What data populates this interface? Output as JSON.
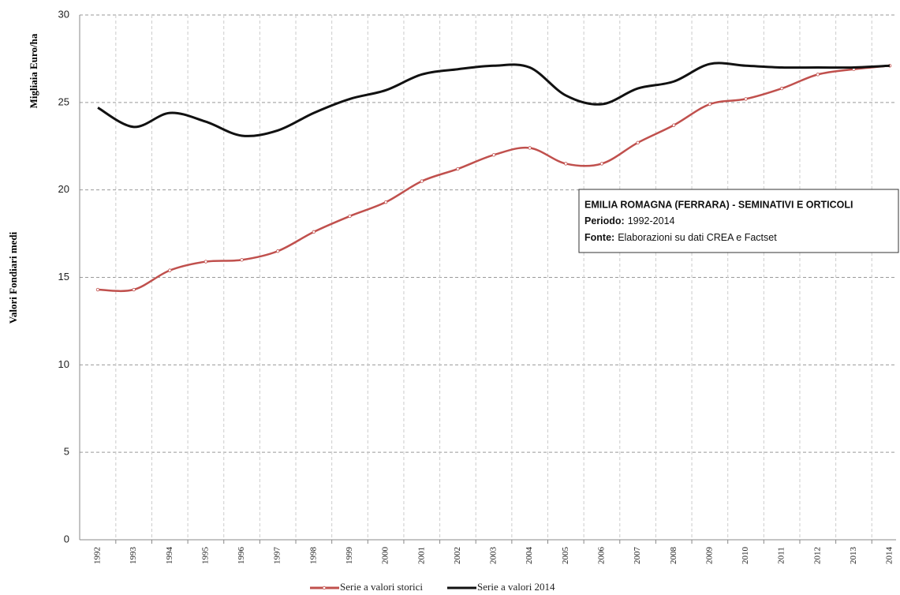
{
  "chart_data": {
    "type": "line",
    "ylabel": "Valori Fondiari medi",
    "yunit": "Migliaia Euro/ha",
    "categories": [
      "1992",
      "1993",
      "1994",
      "1995",
      "1996",
      "1997",
      "1998",
      "1999",
      "2000",
      "2001",
      "2002",
      "2003",
      "2004",
      "2005",
      "2006",
      "2007",
      "2008",
      "2009",
      "2010",
      "2011",
      "2012",
      "2013",
      "2014"
    ],
    "series": [
      {
        "name": "Serie a valori storici",
        "color": "#c0504d",
        "markers": true,
        "values": [
          14.3,
          14.3,
          15.4,
          15.9,
          16.0,
          16.5,
          17.6,
          18.5,
          19.3,
          20.5,
          21.2,
          22.0,
          22.4,
          21.5,
          21.5,
          22.7,
          23.7,
          24.9,
          25.2,
          25.8,
          26.6,
          26.9,
          27.1
        ]
      },
      {
        "name": "Serie a valori 2014",
        "color": "#111111",
        "markers": false,
        "values": [
          24.7,
          23.6,
          24.4,
          23.9,
          23.1,
          23.4,
          24.4,
          25.2,
          25.7,
          26.6,
          26.9,
          27.1,
          27.0,
          25.4,
          24.9,
          25.8,
          26.2,
          27.2,
          27.1,
          27.0,
          27.0,
          27.0,
          27.1
        ]
      }
    ],
    "ylim": [
      0,
      30
    ],
    "yticks": [
      0,
      5,
      10,
      15,
      20,
      25,
      30
    ],
    "grid": true,
    "legend": "bottom",
    "annotation": {
      "title": "Emilia Romagna (Ferrara) - Seminativi e orticoli",
      "lines": [
        {
          "label": "Periodo:",
          "text": "1992-2014"
        },
        {
          "label": "Fonte:",
          "text": "Elaborazioni su dati CREA e Factset"
        }
      ]
    }
  }
}
